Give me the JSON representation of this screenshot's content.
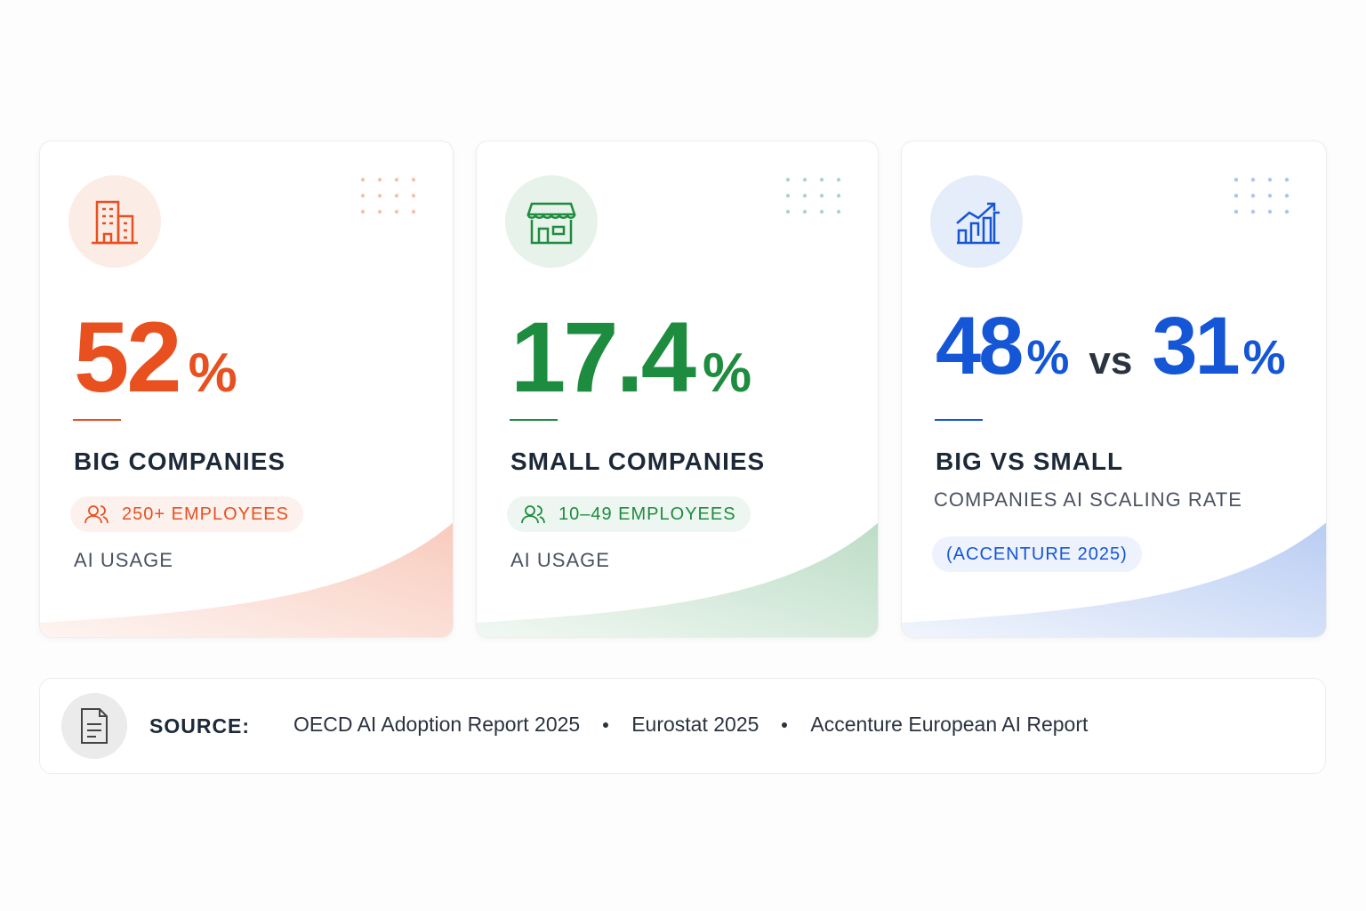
{
  "cards": [
    {
      "stats": [
        {
          "value": "52",
          "unit": "%"
        }
      ],
      "title": "BIG COMPANIES",
      "badge": "250+ EMPLOYEES",
      "caption": "AI USAGE",
      "color": "#e8501f"
    },
    {
      "stats": [
        {
          "value": "17.4",
          "unit": "%"
        }
      ],
      "title": "SMALL COMPANIES",
      "badge": "10–49 EMPLOYEES",
      "caption": "AI USAGE",
      "color": "#1e8c3e"
    },
    {
      "stats": [
        {
          "value": "48",
          "unit": "%"
        },
        {
          "value": "31",
          "unit": "%"
        }
      ],
      "separator": "vs",
      "title": "BIG VS SMALL",
      "subtitle": "COMPANIES AI SCALING RATE",
      "badge": "(ACCENTURE 2025)",
      "color": "#1456d6"
    }
  ],
  "source": {
    "label": "SOURCE:",
    "items": [
      "OECD AI Adoption Report 2025",
      "Eurostat 2025",
      "Accenture European AI Report"
    ]
  }
}
